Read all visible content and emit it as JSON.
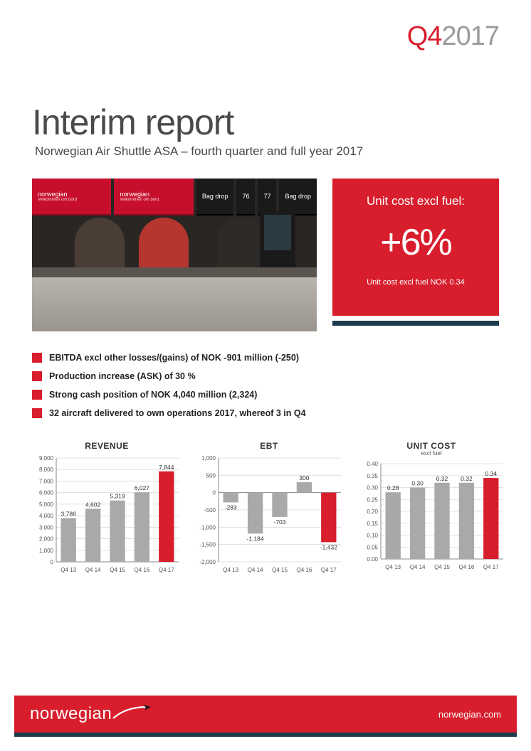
{
  "period": {
    "quarter": "Q4",
    "year": "2017"
  },
  "title": "Interim report",
  "subtitle": "Norwegian Air Shuttle ASA – fourth quarter and full year 2017",
  "photo": {
    "signs": [
      {
        "text": "norwegian",
        "sub": "Velkommen om bord",
        "dark": false
      },
      {
        "text": "norwegian",
        "sub": "Velkommen om bord",
        "dark": false
      },
      {
        "text": "Bag drop",
        "dark": true
      },
      {
        "text": "76",
        "dark": true
      },
      {
        "text": "77",
        "dark": true
      },
      {
        "text": "Bag drop",
        "dark": true
      }
    ]
  },
  "kpi": {
    "title": "Unit cost excl fuel:",
    "value": "+6%",
    "note": "Unit cost excl fuel NOK 0.34",
    "stripe_colors": [
      "#ffffff",
      "#1d3b4a",
      "#ffffff"
    ]
  },
  "bullets": [
    "EBITDA excl other losses/(gains) of NOK -901 million (-250)",
    "Production increase (ASK) of 30 %",
    "Strong cash position of NOK 4,040 million (2,324)",
    "32 aircraft delivered to own operations 2017, whereof 3 in Q4"
  ],
  "charts": {
    "categories": [
      "Q4 13",
      "Q4 14",
      "Q4 15",
      "Q4 16",
      "Q4 17"
    ],
    "bar_color_grey": "#a9a9a9",
    "bar_color_red": "#d81e2d",
    "grid_color": "#d9d9d9",
    "axis_color": "#888888",
    "text_color": "#555555",
    "revenue": {
      "title": "REVENUE",
      "values": [
        3786,
        4602,
        5319,
        6027,
        7844
      ],
      "labels": [
        "3,786",
        "4,602",
        "5,319",
        "6,027",
        "7,844"
      ],
      "ymin": 0,
      "ymax": 9000,
      "ystep": 1000
    },
    "ebt": {
      "title": "EBT",
      "values": [
        -283,
        -1184,
        -703,
        300,
        -1432
      ],
      "labels": [
        "-283",
        "-1,184",
        "-703",
        "300",
        "-1,432"
      ],
      "ymin": -2000,
      "ymax": 1000,
      "ystep": 500
    },
    "unitcost": {
      "title": "UNIT COST",
      "subtitle": "excl fuel",
      "values": [
        0.28,
        0.3,
        0.32,
        0.32,
        0.34
      ],
      "labels": [
        "0.28",
        "0.30",
        "0.32",
        "0.32",
        "0.34"
      ],
      "ymin": 0,
      "ymax": 0.4,
      "ystep": 0.05
    }
  },
  "footer": {
    "brand": "norwegian",
    "url": "norwegian.com"
  }
}
